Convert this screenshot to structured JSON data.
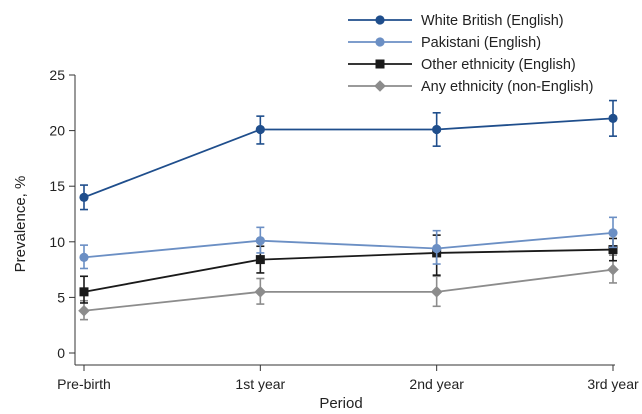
{
  "chart_data": {
    "type": "line",
    "categories": [
      "Pre-birth",
      "1st year",
      "2nd year",
      "3rd year"
    ],
    "xlabel": "Period",
    "ylabel": "Prevalence, %",
    "ylim": [
      0,
      25
    ],
    "yticks": [
      0,
      5,
      10,
      15,
      20,
      25
    ],
    "grid": false,
    "legend_position": "top-right",
    "series": [
      {
        "name": "White British (English)",
        "color": "#1f4e8c",
        "marker": "circle",
        "values": [
          14.0,
          20.1,
          20.1,
          21.1
        ],
        "error_low": [
          12.9,
          18.8,
          18.6,
          19.5
        ],
        "error_high": [
          15.1,
          21.3,
          21.6,
          22.7
        ]
      },
      {
        "name": "Pakistani (English)",
        "color": "#6b8fc4",
        "marker": "circle",
        "values": [
          8.6,
          10.1,
          9.4,
          10.8
        ],
        "error_low": [
          7.6,
          9.0,
          8.0,
          9.5
        ],
        "error_high": [
          9.7,
          11.3,
          11.0,
          12.2
        ]
      },
      {
        "name": "Other ethnicity (English)",
        "color": "#1a1a1a",
        "marker": "square",
        "values": [
          5.5,
          8.4,
          9.0,
          9.3
        ],
        "error_low": [
          4.5,
          7.2,
          7.0,
          8.3
        ],
        "error_high": [
          6.9,
          9.6,
          10.6,
          10.3
        ]
      },
      {
        "name": "Any ethnicity (non-English)",
        "color": "#8c8c8c",
        "marker": "diamond",
        "values": [
          3.8,
          5.5,
          5.5,
          7.5
        ],
        "error_low": [
          3.0,
          4.4,
          4.2,
          6.3
        ],
        "error_high": [
          4.7,
          6.7,
          6.9,
          8.8
        ]
      }
    ]
  }
}
